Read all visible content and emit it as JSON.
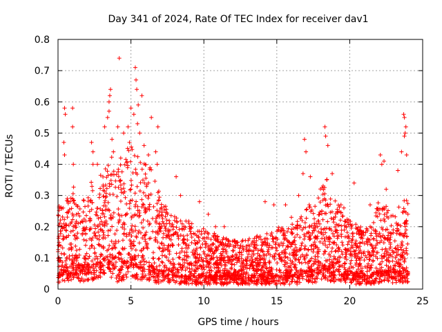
{
  "chart_data": {
    "type": "scatter",
    "title": "Day 341 of 2024, Rate Of TEC Index for receiver dav1",
    "xlabel": "GPS time / hours",
    "ylabel": "ROTI / TECUs",
    "xlim": [
      0,
      25
    ],
    "ylim": [
      0,
      0.8
    ],
    "x_ticks": [
      0,
      5,
      10,
      15,
      20,
      25
    ],
    "x_tick_labels": [
      "0",
      "5",
      "10",
      "15",
      "20",
      "25"
    ],
    "y_ticks": [
      0,
      0.1,
      0.2,
      0.3,
      0.4,
      0.5,
      0.6,
      0.7,
      0.8
    ],
    "y_tick_labels": [
      "0",
      "0.1",
      "0.2",
      "0.3",
      "0.4",
      "0.5",
      "0.6",
      "0.7",
      "0.8"
    ],
    "grid": true,
    "marker": "plus",
    "color": "#ff0000",
    "envelope": {
      "x": [
        0.0,
        0.25,
        0.5,
        0.75,
        1.0,
        1.25,
        1.5,
        1.75,
        2.0,
        2.25,
        2.5,
        2.75,
        3.0,
        3.25,
        3.5,
        3.75,
        4.0,
        4.25,
        4.5,
        4.75,
        5.0,
        5.25,
        5.5,
        5.75,
        6.0,
        6.25,
        6.5,
        6.75,
        7.0,
        7.5,
        8.0,
        8.5,
        9.0,
        9.5,
        10.0,
        10.5,
        11.0,
        11.5,
        12.0,
        12.5,
        13.0,
        13.5,
        14.0,
        14.5,
        15.0,
        15.5,
        16.0,
        16.5,
        17.0,
        17.5,
        18.0,
        18.5,
        19.0,
        19.5,
        20.0,
        20.5,
        21.0,
        21.5,
        22.0,
        22.5,
        23.0,
        23.5,
        24.0
      ],
      "typical_max": [
        0.26,
        0.3,
        0.32,
        0.28,
        0.34,
        0.28,
        0.26,
        0.3,
        0.3,
        0.36,
        0.32,
        0.34,
        0.38,
        0.4,
        0.45,
        0.42,
        0.38,
        0.4,
        0.42,
        0.45,
        0.5,
        0.46,
        0.44,
        0.42,
        0.4,
        0.4,
        0.38,
        0.36,
        0.3,
        0.26,
        0.24,
        0.22,
        0.22,
        0.2,
        0.2,
        0.18,
        0.17,
        0.16,
        0.16,
        0.15,
        0.16,
        0.17,
        0.18,
        0.18,
        0.2,
        0.2,
        0.21,
        0.23,
        0.28,
        0.26,
        0.34,
        0.36,
        0.3,
        0.24,
        0.22,
        0.2,
        0.2,
        0.2,
        0.3,
        0.28,
        0.24,
        0.28,
        0.3
      ],
      "baseline": [
        0.03,
        0.04,
        0.05,
        0.04,
        0.06,
        0.05,
        0.04,
        0.05,
        0.05,
        0.06,
        0.05,
        0.06,
        0.06,
        0.07,
        0.08,
        0.06,
        0.04,
        0.05,
        0.06,
        0.07,
        0.08,
        0.07,
        0.06,
        0.06,
        0.05,
        0.05,
        0.05,
        0.04,
        0.04,
        0.04,
        0.04,
        0.03,
        0.03,
        0.03,
        0.03,
        0.03,
        0.03,
        0.03,
        0.03,
        0.03,
        0.03,
        0.03,
        0.03,
        0.03,
        0.03,
        0.03,
        0.03,
        0.03,
        0.04,
        0.04,
        0.05,
        0.05,
        0.04,
        0.04,
        0.04,
        0.03,
        0.03,
        0.03,
        0.04,
        0.04,
        0.04,
        0.04,
        0.04
      ]
    },
    "outliers": [
      [
        0.45,
        0.58
      ],
      [
        0.5,
        0.56
      ],
      [
        0.4,
        0.47
      ],
      [
        0.45,
        0.43
      ],
      [
        1.0,
        0.58
      ],
      [
        1.0,
        0.52
      ],
      [
        1.05,
        0.4
      ],
      [
        2.3,
        0.47
      ],
      [
        2.4,
        0.44
      ],
      [
        2.4,
        0.4
      ],
      [
        2.7,
        0.4
      ],
      [
        3.2,
        0.52
      ],
      [
        3.4,
        0.55
      ],
      [
        3.5,
        0.6
      ],
      [
        3.6,
        0.64
      ],
      [
        3.55,
        0.62
      ],
      [
        3.5,
        0.57
      ],
      [
        3.7,
        0.48
      ],
      [
        3.8,
        0.44
      ],
      [
        4.2,
        0.74
      ],
      [
        4.1,
        0.52
      ],
      [
        4.3,
        0.42
      ],
      [
        4.5,
        0.5
      ],
      [
        4.8,
        0.52
      ],
      [
        4.9,
        0.47
      ],
      [
        5.0,
        0.58
      ],
      [
        5.2,
        0.56
      ],
      [
        5.3,
        0.71
      ],
      [
        5.35,
        0.67
      ],
      [
        5.4,
        0.64
      ],
      [
        5.5,
        0.59
      ],
      [
        5.45,
        0.53
      ],
      [
        5.6,
        0.5
      ],
      [
        5.75,
        0.62
      ],
      [
        5.9,
        0.46
      ],
      [
        6.2,
        0.43
      ],
      [
        6.4,
        0.55
      ],
      [
        6.7,
        0.44
      ],
      [
        6.8,
        0.4
      ],
      [
        6.85,
        0.52
      ],
      [
        8.1,
        0.36
      ],
      [
        8.4,
        0.3
      ],
      [
        9.7,
        0.28
      ],
      [
        10.3,
        0.24
      ],
      [
        10.8,
        0.2
      ],
      [
        11.4,
        0.2
      ],
      [
        14.2,
        0.28
      ],
      [
        14.8,
        0.27
      ],
      [
        15.6,
        0.27
      ],
      [
        16.0,
        0.23
      ],
      [
        16.5,
        0.3
      ],
      [
        16.8,
        0.37
      ],
      [
        16.9,
        0.48
      ],
      [
        17.0,
        0.44
      ],
      [
        17.3,
        0.36
      ],
      [
        18.3,
        0.52
      ],
      [
        18.35,
        0.49
      ],
      [
        18.5,
        0.46
      ],
      [
        18.8,
        0.37
      ],
      [
        19.4,
        0.27
      ],
      [
        19.6,
        0.26
      ],
      [
        20.3,
        0.34
      ],
      [
        21.4,
        0.27
      ],
      [
        22.1,
        0.43
      ],
      [
        22.2,
        0.4
      ],
      [
        22.35,
        0.41
      ],
      [
        22.5,
        0.32
      ],
      [
        23.3,
        0.38
      ],
      [
        23.55,
        0.44
      ],
      [
        23.7,
        0.56
      ],
      [
        23.75,
        0.55
      ],
      [
        23.8,
        0.5
      ],
      [
        23.85,
        0.52
      ],
      [
        23.9,
        0.43
      ],
      [
        23.75,
        0.49
      ]
    ]
  }
}
